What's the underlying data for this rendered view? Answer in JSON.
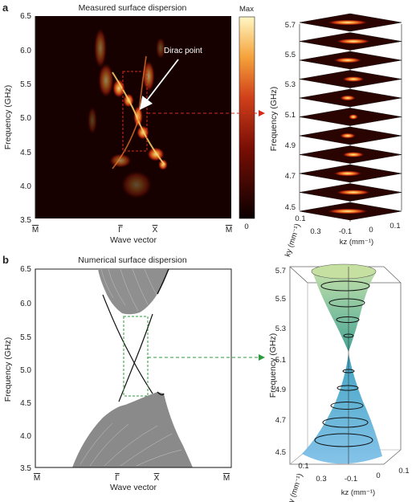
{
  "panel_a": {
    "letter": "a",
    "title": "Measured surface dispersion",
    "annotation": "Dirac point",
    "y_label": "Frequency (GHz)",
    "y_ticks": [
      "6.5",
      "6.0",
      "5.5",
      "5.0",
      "4.5",
      "4.0",
      "3.5"
    ],
    "x_label": "Wave vector",
    "x_ticks": [
      "M",
      "Γ",
      "X",
      "M"
    ],
    "colorbar": {
      "max_label": "Max",
      "min_label": "0"
    },
    "stack": {
      "y_label": "Frequency (GHz)",
      "z_ticks": [
        "5.7",
        "5.5",
        "5.3",
        "5.1",
        "4.9",
        "4.7",
        "4.5"
      ],
      "ky_label": "ky (mm⁻¹)",
      "ky_ticks": [
        "0.1",
        "0.3"
      ],
      "kz_label": "kz (mm⁻¹)",
      "kz_ticks": [
        "-0.1",
        "0",
        "0.1"
      ]
    }
  },
  "panel_b": {
    "letter": "b",
    "title": "Numerical surface dispersion",
    "y_label": "Frequency (GHz)",
    "y_ticks": [
      "6.5",
      "6.0",
      "5.5",
      "5.0",
      "4.5",
      "4.0",
      "3.5"
    ],
    "x_label": "Wave vector",
    "x_ticks": [
      "M",
      "Γ",
      "X",
      "M"
    ],
    "cone": {
      "y_label": "Frequency (GHz)",
      "z_ticks": [
        "5.7",
        "5.5",
        "5.3",
        "5.1",
        "4.9",
        "4.7",
        "4.5"
      ],
      "ky_label": "ky (mm⁻¹)",
      "ky_ticks": [
        "0.1",
        "0.3"
      ],
      "kz_label": "kz (mm⁻¹)",
      "kz_ticks": [
        "-0.1",
        "0",
        "0.1"
      ]
    }
  },
  "colors": {
    "heat_dark": "#1a0000",
    "heat_mid": "#c8301a",
    "heat_bright": "#ffe27a",
    "guide_red": "#d42a1e",
    "guide_green": "#2e9a3e",
    "band_gray": "#8a8a8a",
    "cone_green": "#a8cf8e",
    "cone_blue": "#3b8fc9"
  }
}
